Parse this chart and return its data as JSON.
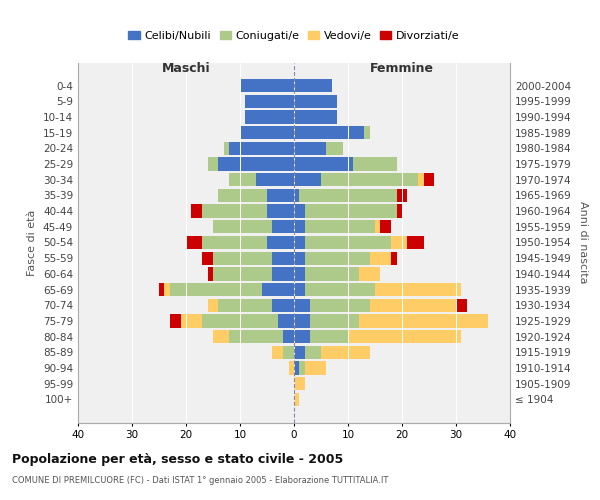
{
  "age_groups": [
    "100+",
    "95-99",
    "90-94",
    "85-89",
    "80-84",
    "75-79",
    "70-74",
    "65-69",
    "60-64",
    "55-59",
    "50-54",
    "45-49",
    "40-44",
    "35-39",
    "30-34",
    "25-29",
    "20-24",
    "15-19",
    "10-14",
    "5-9",
    "0-4"
  ],
  "birth_years": [
    "≤ 1904",
    "1905-1909",
    "1910-1914",
    "1915-1919",
    "1920-1924",
    "1925-1929",
    "1930-1934",
    "1935-1939",
    "1940-1944",
    "1945-1949",
    "1950-1954",
    "1955-1959",
    "1960-1964",
    "1965-1969",
    "1970-1974",
    "1975-1979",
    "1980-1984",
    "1985-1989",
    "1990-1994",
    "1995-1999",
    "2000-2004"
  ],
  "males": {
    "celibi": [
      0,
      0,
      0,
      0,
      2,
      3,
      4,
      6,
      4,
      4,
      5,
      4,
      5,
      5,
      7,
      14,
      12,
      10,
      9,
      9,
      10
    ],
    "coniugati": [
      0,
      0,
      0,
      2,
      10,
      14,
      10,
      17,
      11,
      11,
      12,
      11,
      12,
      9,
      5,
      2,
      1,
      0,
      0,
      0,
      0
    ],
    "vedovi": [
      0,
      0,
      1,
      2,
      3,
      4,
      2,
      1,
      0,
      0,
      0,
      0,
      0,
      0,
      0,
      0,
      0,
      0,
      0,
      0,
      0
    ],
    "divorziati": [
      0,
      0,
      0,
      0,
      0,
      2,
      0,
      1,
      1,
      2,
      3,
      0,
      2,
      0,
      0,
      0,
      0,
      0,
      0,
      0,
      0
    ]
  },
  "females": {
    "nubili": [
      0,
      0,
      1,
      2,
      3,
      3,
      3,
      2,
      2,
      2,
      2,
      2,
      2,
      1,
      5,
      11,
      6,
      13,
      8,
      8,
      7
    ],
    "coniugate": [
      0,
      0,
      1,
      3,
      7,
      9,
      11,
      13,
      10,
      12,
      16,
      13,
      17,
      18,
      18,
      8,
      3,
      1,
      0,
      0,
      0
    ],
    "vedove": [
      1,
      2,
      4,
      9,
      21,
      24,
      16,
      16,
      4,
      4,
      3,
      1,
      0,
      0,
      1,
      0,
      0,
      0,
      0,
      0,
      0
    ],
    "divorziate": [
      0,
      0,
      0,
      0,
      0,
      0,
      2,
      0,
      0,
      1,
      3,
      2,
      1,
      2,
      2,
      0,
      0,
      0,
      0,
      0,
      0
    ]
  },
  "colors": {
    "celibi": "#4472C4",
    "coniugati": "#AECA8A",
    "vedovi": "#FFCC66",
    "divorziati": "#CC0000"
  },
  "title": "Popolazione per età, sesso e stato civile - 2005",
  "subtitle": "COMUNE DI PREMILCUORE (FC) - Dati ISTAT 1° gennaio 2005 - Elaborazione TUTTITALIA.IT",
  "ylabel_left": "Fasce di età",
  "ylabel_right": "Anni di nascita",
  "maschi_label": "Maschi",
  "femmine_label": "Femmine",
  "legend_labels": [
    "Celibi/Nubili",
    "Coniugati/e",
    "Vedovi/e",
    "Divorziati/e"
  ],
  "xlim": 40,
  "bg_color": "#FFFFFF",
  "plot_bg": "#F0F0F0"
}
